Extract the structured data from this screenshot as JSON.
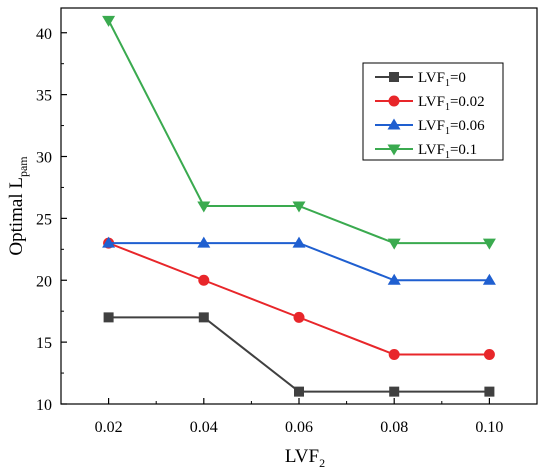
{
  "chart_data": {
    "type": "line",
    "x": [
      0.02,
      0.04,
      0.06,
      0.08,
      0.1
    ],
    "x_tick_labels": [
      "0.02",
      "0.04",
      "0.06",
      "0.08",
      "0.10"
    ],
    "xlim": [
      0.01,
      0.11
    ],
    "ylim": [
      10,
      42
    ],
    "y_ticks": [
      10,
      15,
      20,
      25,
      30,
      35,
      40
    ],
    "xlabel": {
      "base": "LVF",
      "sub": "2"
    },
    "ylabel": {
      "base": "Optimal L",
      "sub": "pam"
    },
    "grid": false,
    "legend_position": "top-right",
    "series": [
      {
        "name_base": "LVF",
        "name_sub": "1",
        "name_rest": "=0",
        "color": "#404040",
        "marker": "square",
        "values": [
          17,
          17,
          11,
          11,
          11
        ]
      },
      {
        "name_base": "LVF",
        "name_sub": "1",
        "name_rest": "=0.02",
        "color": "#e8262a",
        "marker": "circle",
        "values": [
          23,
          20,
          17,
          14,
          14
        ]
      },
      {
        "name_base": "LVF",
        "name_sub": "1",
        "name_rest": "=0.06",
        "color": "#1f5fd0",
        "marker": "triangle-up",
        "values": [
          23,
          23,
          23,
          20,
          20
        ]
      },
      {
        "name_base": "LVF",
        "name_sub": "1",
        "name_rest": "=0.1",
        "color": "#3aaa4f",
        "marker": "triangle-down",
        "values": [
          41,
          26,
          26,
          23,
          23
        ]
      }
    ]
  }
}
